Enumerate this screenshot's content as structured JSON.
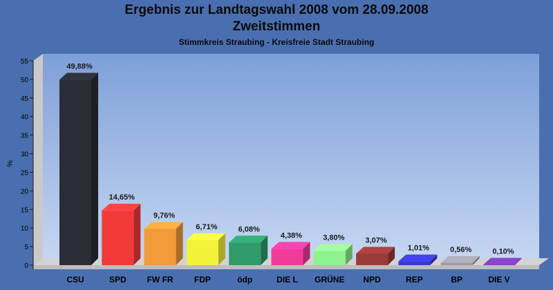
{
  "chart_data": {
    "type": "bar",
    "title": "Ergebnis zur Landtagswahl 2008 vom 28.09.2008",
    "subtitle_main": "Zweitstimmen",
    "subtitle": "Stimmkreis Straubing - Kreisfreie Stadt Straubing",
    "ylabel": "%",
    "xlabel": "",
    "ylim": [
      0,
      55
    ],
    "yticks": [
      0,
      5,
      10,
      15,
      20,
      25,
      30,
      35,
      40,
      45,
      50,
      55
    ],
    "grid": false,
    "categories": [
      "CSU",
      "SPD",
      "FW FR",
      "FDP",
      "ödp",
      "DIE L",
      "GRÜNE",
      "NPD",
      "REP",
      "BP",
      "DIE V"
    ],
    "values": [
      49.88,
      14.65,
      9.76,
      6.71,
      6.08,
      4.38,
      3.8,
      3.07,
      1.01,
      0.56,
      0.1
    ],
    "value_labels": [
      "49,88%",
      "14,65%",
      "9,76%",
      "6,71%",
      "6,08%",
      "4,38%",
      "3,80%",
      "3,07%",
      "1,01%",
      "0,56%",
      "0,10%"
    ],
    "colors": [
      "#2a2d35",
      "#f23a3a",
      "#f39a3a",
      "#f2f23a",
      "#2f9a6a",
      "#f23a9a",
      "#8ef28e",
      "#9a3a3a",
      "#3a3ad2",
      "#9a9aa6",
      "#7a3ab2"
    ]
  }
}
